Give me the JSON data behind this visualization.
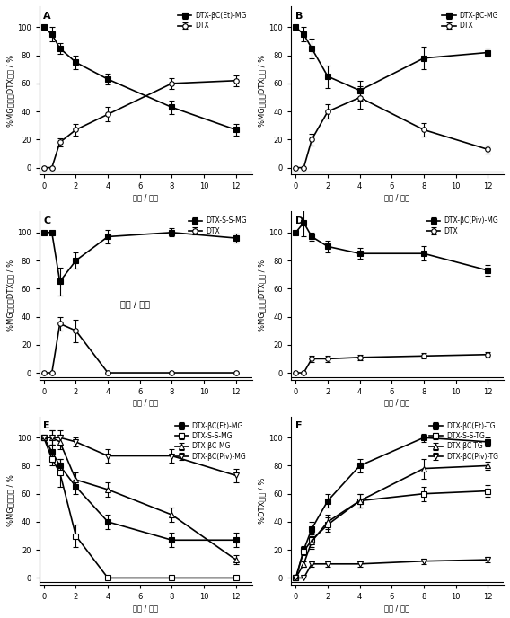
{
  "time_points": [
    0,
    0.5,
    1,
    2,
    4,
    8,
    12
  ],
  "A": {
    "label": "A",
    "series": [
      {
        "name": "DTX-βC(Et)-MG",
        "y": [
          100,
          95,
          85,
          75,
          63,
          43,
          27
        ],
        "yerr": [
          0,
          5,
          4,
          5,
          4,
          5,
          4
        ],
        "marker": "s",
        "linestyle": "-"
      },
      {
        "name": "DTX",
        "y": [
          0,
          0,
          18,
          27,
          38,
          60,
          62
        ],
        "yerr": [
          0,
          0,
          3,
          4,
          5,
          4,
          4
        ],
        "marker": "o",
        "linestyle": "-"
      }
    ],
    "ylabel": "%MG前药和DTX含量 / %",
    "xlabel": "时间 / 小时",
    "ylim": [
      -5,
      115
    ],
    "yticks": [
      0,
      20,
      40,
      60,
      80,
      100
    ]
  },
  "B": {
    "label": "B",
    "series": [
      {
        "name": "DTX-βC-MG",
        "y": [
          100,
          95,
          85,
          65,
          55,
          78,
          82
        ],
        "yerr": [
          0,
          5,
          7,
          8,
          7,
          8,
          3
        ],
        "marker": "s",
        "linestyle": "-"
      },
      {
        "name": "DTX",
        "y": [
          0,
          0,
          20,
          40,
          50,
          27,
          13
        ],
        "yerr": [
          0,
          0,
          4,
          5,
          8,
          5,
          3
        ],
        "marker": "o",
        "linestyle": "-"
      }
    ],
    "ylabel": "%MG前药和DTX含量 / %",
    "xlabel": "时间 / 小时",
    "ylim": [
      -5,
      115
    ],
    "yticks": [
      0,
      20,
      40,
      60,
      80,
      100
    ]
  },
  "C": {
    "label": "C",
    "series": [
      {
        "name": "DTX-S-S-MG",
        "y": [
          100,
          100,
          65,
          80,
          97,
          100,
          96
        ],
        "yerr": [
          0,
          0,
          10,
          6,
          5,
          3,
          3
        ],
        "marker": "s",
        "linestyle": "-"
      },
      {
        "name": "DTX",
        "y": [
          0,
          0,
          35,
          30,
          0,
          0,
          0
        ],
        "yerr": [
          0,
          0,
          5,
          8,
          0,
          0,
          0
        ],
        "marker": "o",
        "linestyle": "-"
      }
    ],
    "ylabel": "%MG前药和DTX含量 / %",
    "xlabel": "时间 / 小时",
    "ylim": [
      -5,
      115
    ],
    "yticks": [
      0,
      20,
      40,
      60,
      80,
      100
    ],
    "text_in_plot": "时间 / 小时"
  },
  "D": {
    "label": "D",
    "series": [
      {
        "name": "DTX-βC(Piv)-MG",
        "y": [
          100,
          107,
          97,
          90,
          85,
          85,
          73
        ],
        "yerr": [
          0,
          10,
          3,
          4,
          4,
          5,
          4
        ],
        "marker": "s",
        "linestyle": "-"
      },
      {
        "name": "DTX",
        "y": [
          0,
          0,
          10,
          10,
          11,
          12,
          13
        ],
        "yerr": [
          0,
          0,
          2,
          2,
          2,
          2,
          2
        ],
        "marker": "o",
        "linestyle": "-"
      }
    ],
    "ylabel": "%MG前药和DTX含量 / %",
    "xlabel": "时间 / 小时",
    "ylim": [
      -5,
      115
    ],
    "yticks": [
      0,
      20,
      40,
      60,
      80,
      100
    ]
  },
  "E": {
    "label": "E",
    "series": [
      {
        "name": "DTX-βC(Et)-MG",
        "y": [
          100,
          90,
          80,
          65,
          40,
          27,
          27
        ],
        "yerr": [
          0,
          5,
          5,
          5,
          5,
          5,
          5
        ],
        "marker": "s",
        "linestyle": "-"
      },
      {
        "name": "DTX-S-S-MG",
        "y": [
          100,
          85,
          75,
          30,
          0,
          0,
          0
        ],
        "yerr": [
          0,
          5,
          10,
          8,
          0,
          0,
          0
        ],
        "marker": "s",
        "linestyle": "-"
      },
      {
        "name": "DTX-βC-MG",
        "y": [
          100,
          100,
          97,
          70,
          63,
          45,
          13
        ],
        "yerr": [
          0,
          5,
          5,
          5,
          5,
          5,
          3
        ],
        "marker": "^",
        "linestyle": "-"
      },
      {
        "name": "DTX-βC(Piv)-MG",
        "y": [
          100,
          100,
          100,
          97,
          87,
          87,
          73
        ],
        "yerr": [
          0,
          5,
          5,
          3,
          5,
          5,
          5
        ],
        "marker": "v",
        "linestyle": "-"
      }
    ],
    "ylabel": "%MG前药含量 / %",
    "xlabel": "时间 / 小时",
    "ylim": [
      -5,
      115
    ],
    "yticks": [
      0,
      20,
      40,
      60,
      80,
      100
    ]
  },
  "F": {
    "label": "F",
    "series": [
      {
        "name": "DTX-βC(Et)-TG",
        "y": [
          0,
          20,
          35,
          55,
          80,
          100,
          97
        ],
        "yerr": [
          0,
          3,
          5,
          5,
          5,
          3,
          3
        ],
        "marker": "s",
        "linestyle": "-"
      },
      {
        "name": "DTX-S-S-TG",
        "y": [
          0,
          19,
          27,
          38,
          55,
          60,
          62
        ],
        "yerr": [
          0,
          3,
          5,
          5,
          5,
          5,
          4
        ],
        "marker": "s",
        "linestyle": "-"
      },
      {
        "name": "DTX-βC-TG",
        "y": [
          0,
          10,
          26,
          40,
          55,
          78,
          80
        ],
        "yerr": [
          0,
          2,
          5,
          5,
          5,
          7,
          3
        ],
        "marker": "^",
        "linestyle": "-"
      },
      {
        "name": "DTX-βC(Piv)-TG",
        "y": [
          0,
          0,
          10,
          10,
          10,
          12,
          13
        ],
        "yerr": [
          0,
          0,
          2,
          2,
          2,
          2,
          2
        ],
        "marker": "v",
        "linestyle": "-"
      }
    ],
    "ylabel": "%DTX含量 / %",
    "xlabel": "时间 / 小时",
    "ylim": [
      -5,
      115
    ],
    "yticks": [
      0,
      20,
      40,
      60,
      80,
      100
    ]
  },
  "line_colors_AB": [
    "black",
    "black"
  ],
  "line_colors_CD": [
    "black",
    "black"
  ],
  "line_colors_E": [
    "black",
    "black",
    "black",
    "black"
  ],
  "line_colors_F": [
    "black",
    "black",
    "black",
    "black"
  ],
  "font_size": 7,
  "marker_size": 4,
  "linewidth": 1.2,
  "capsize": 2,
  "elinewidth": 0.8
}
